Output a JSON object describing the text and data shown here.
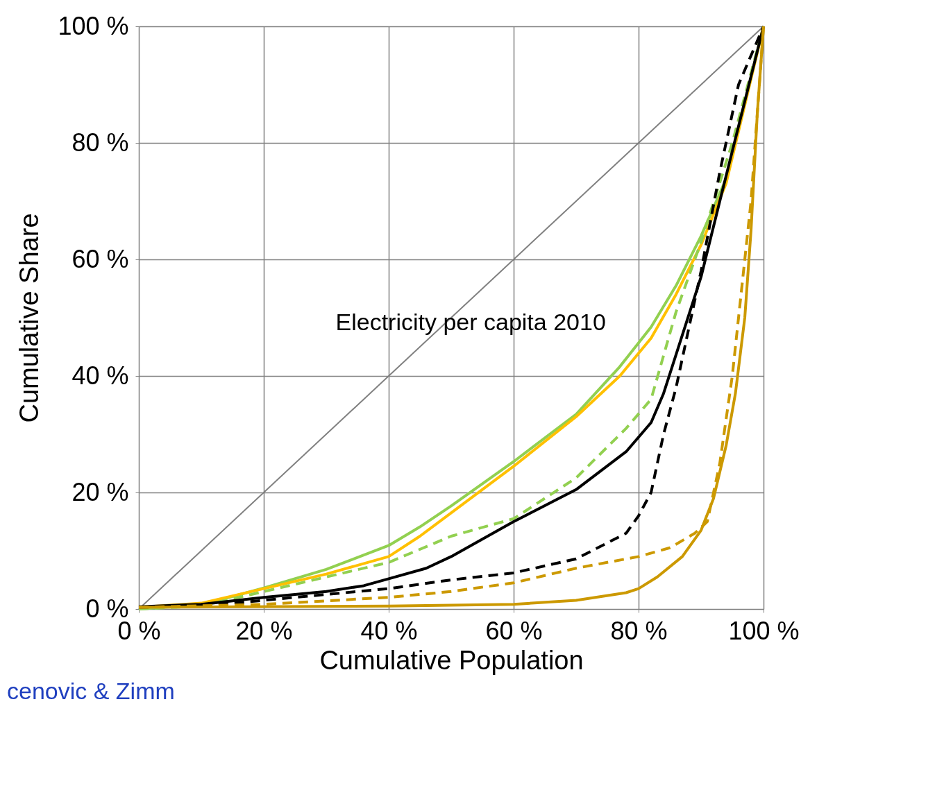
{
  "chart_data": {
    "type": "line",
    "xlabel": "Cumulative Population",
    "ylabel": "Cumulative Share",
    "annotations": [
      "Electricity per capita 2010",
      "cenovic & Zimm"
    ],
    "xlim": [
      0,
      100
    ],
    "ylim": [
      0,
      100
    ],
    "xticks": [
      {
        "value": 0,
        "label": "0 %"
      },
      {
        "value": 20,
        "label": "20 %"
      },
      {
        "value": 40,
        "label": "40 %"
      },
      {
        "value": 60,
        "label": "60 %"
      },
      {
        "value": 80,
        "label": "80 %"
      },
      {
        "value": 100,
        "label": "100 %"
      }
    ],
    "yticks": [
      {
        "value": 0,
        "label": "0 %"
      },
      {
        "value": 20,
        "label": "20 %"
      },
      {
        "value": 40,
        "label": "40 %"
      },
      {
        "value": 60,
        "label": "60 %"
      },
      {
        "value": 80,
        "label": "80 %"
      },
      {
        "value": 100,
        "label": "100 %"
      }
    ],
    "grid": true,
    "series": [
      {
        "color": "#808080",
        "line_style": "solid",
        "x": [
          0,
          100
        ],
        "values": [
          0,
          100
        ]
      },
      {
        "color": "#92d050",
        "line_style": "solid",
        "x": [
          0,
          10,
          20,
          30,
          40,
          45,
          50,
          60,
          70,
          77,
          82,
          86,
          90,
          94,
          100
        ],
        "values": [
          0,
          0.7,
          3.6,
          6.8,
          10.9,
          14.1,
          17.7,
          25.3,
          33.4,
          41.6,
          48.4,
          55.5,
          64,
          73.8,
          100
        ]
      },
      {
        "color": "#ffc000",
        "line_style": "solid",
        "x": [
          0,
          10,
          20,
          30,
          40,
          45,
          50,
          60,
          70,
          77,
          82,
          86,
          90,
          94,
          100
        ],
        "values": [
          0.3,
          1,
          3.5,
          6,
          9,
          12.5,
          16.5,
          24.5,
          33,
          40,
          46.5,
          54,
          62.5,
          73,
          100
        ]
      },
      {
        "color": "#92d050",
        "line_style": "dashed",
        "x": [
          0,
          10,
          20,
          30,
          40,
          50,
          60,
          70,
          78,
          82,
          86,
          90,
          95,
          100
        ],
        "values": [
          0,
          0.5,
          3,
          5.5,
          8,
          12.5,
          15.5,
          22.5,
          31,
          36,
          51,
          63,
          80,
          100
        ]
      },
      {
        "color": "#000000",
        "line_style": "solid",
        "x": [
          0,
          10,
          20,
          30,
          36,
          40,
          46,
          50,
          60,
          70,
          78,
          82,
          84,
          87,
          90,
          93,
          100
        ],
        "values": [
          0.4,
          0.8,
          2,
          3,
          4,
          5.2,
          7,
          9,
          15,
          20.5,
          27,
          32,
          37,
          47,
          57,
          70,
          100
        ]
      },
      {
        "color": "#000000",
        "line_style": "dashed",
        "x": [
          0,
          10,
          20,
          30,
          40,
          50,
          60,
          70,
          78,
          80,
          82,
          84,
          86,
          88,
          90,
          93,
          96,
          100
        ],
        "values": [
          0.3,
          0.5,
          1.5,
          2.5,
          3.5,
          5,
          6.2,
          8.6,
          13,
          16,
          20,
          30,
          38,
          48,
          58,
          75,
          90,
          100
        ]
      },
      {
        "color": "#cc9900",
        "line_style": "dashed",
        "x": [
          0,
          20,
          40,
          50,
          60,
          70,
          80,
          85,
          89,
          91,
          93,
          95,
          96.5,
          98,
          99,
          100
        ],
        "values": [
          0.3,
          0.8,
          2,
          3,
          4.5,
          7,
          9,
          10.5,
          13,
          15,
          25,
          40,
          55,
          70,
          85,
          100
        ]
      },
      {
        "color": "#cc9900",
        "line_style": "solid",
        "x": [
          0,
          40,
          60,
          70,
          78,
          80,
          83,
          87,
          90,
          92,
          94,
          95.5,
          97,
          98,
          99,
          100
        ],
        "values": [
          0.3,
          0.5,
          0.8,
          1.5,
          2.8,
          3.5,
          5.5,
          9,
          13.5,
          19,
          28,
          37,
          50,
          65,
          85,
          100
        ]
      }
    ]
  }
}
